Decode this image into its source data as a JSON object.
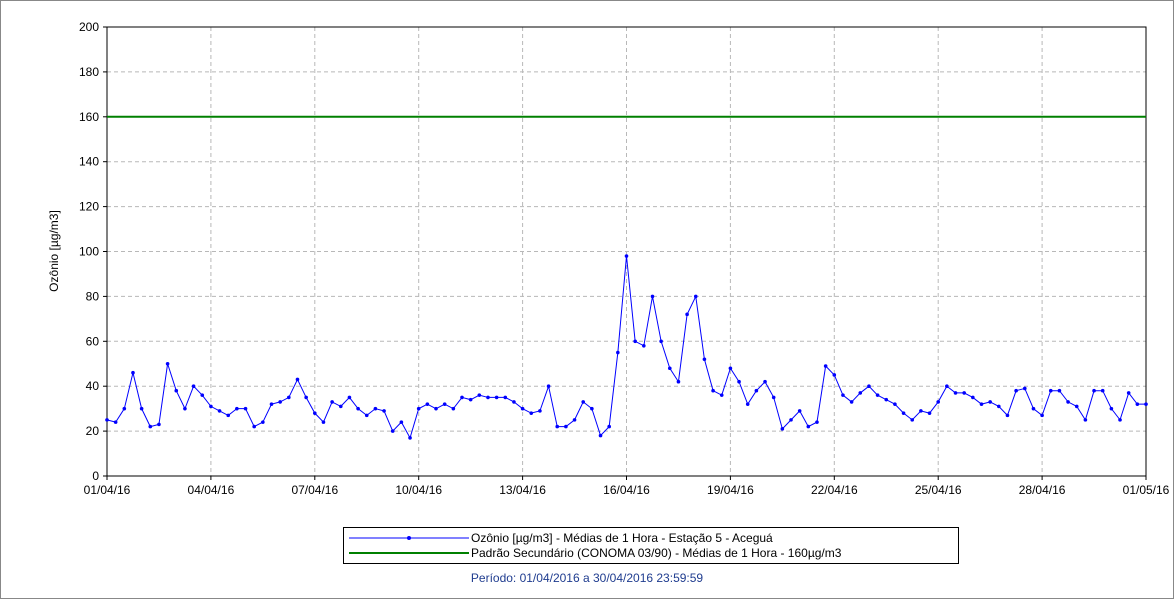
{
  "chart_data": {
    "type": "line",
    "y_label": "Ozônio [µg/m3]",
    "period": "Período: 01/04/2016 a 30/04/2016 23:59:59",
    "grid": true,
    "xlim": [
      0,
      30
    ],
    "ylim": [
      0,
      200
    ],
    "xticks": [
      {
        "value": 0,
        "label": "01/04/16"
      },
      {
        "value": 3,
        "label": "04/04/16"
      },
      {
        "value": 6,
        "label": "07/04/16"
      },
      {
        "value": 9,
        "label": "10/04/16"
      },
      {
        "value": 12,
        "label": "13/04/16"
      },
      {
        "value": 15,
        "label": "16/04/16"
      },
      {
        "value": 18,
        "label": "19/04/16"
      },
      {
        "value": 21,
        "label": "22/04/16"
      },
      {
        "value": 24,
        "label": "25/04/16"
      },
      {
        "value": 27,
        "label": "28/04/16"
      },
      {
        "value": 30,
        "label": "01/05/16"
      }
    ],
    "yticks": [
      0,
      20,
      40,
      60,
      80,
      100,
      120,
      140,
      160,
      180,
      200
    ],
    "series": [
      {
        "name": "Ozônio [µg/m3] - Médias de 1 Hora - Estação 5 - Aceguá",
        "color": "#0000ff",
        "markers": true,
        "x": [
          0,
          0.25,
          0.5,
          0.75,
          1,
          1.25,
          1.5,
          1.75,
          2,
          2.25,
          2.5,
          2.75,
          3,
          3.25,
          3.5,
          3.75,
          4,
          4.25,
          4.5,
          4.75,
          5,
          5.25,
          5.5,
          5.75,
          6,
          6.25,
          6.5,
          6.75,
          7,
          7.25,
          7.5,
          7.75,
          8,
          8.25,
          8.5,
          8.75,
          9,
          9.25,
          9.5,
          9.75,
          10,
          10.25,
          10.5,
          10.75,
          11,
          11.25,
          11.5,
          11.75,
          12,
          12.25,
          12.5,
          12.75,
          13,
          13.25,
          13.5,
          13.75,
          14,
          14.25,
          14.5,
          14.75,
          15,
          15.25,
          15.5,
          15.75,
          16,
          16.25,
          16.5,
          16.75,
          17,
          17.25,
          17.5,
          17.75,
          18,
          18.25,
          18.5,
          18.75,
          19,
          19.25,
          19.5,
          19.75,
          20,
          20.25,
          20.5,
          20.75,
          21,
          21.25,
          21.5,
          21.75,
          22,
          22.25,
          22.5,
          22.75,
          23,
          23.25,
          23.5,
          23.75,
          24,
          24.25,
          24.5,
          24.75,
          25,
          25.25,
          25.5,
          25.75,
          26,
          26.25,
          26.5,
          26.75,
          27,
          27.25,
          27.5,
          27.75,
          28,
          28.25,
          28.5,
          28.75,
          29,
          29.25,
          29.5,
          29.75,
          30
        ],
        "values": [
          25,
          24,
          30,
          46,
          30,
          22,
          23,
          50,
          38,
          30,
          40,
          36,
          31,
          29,
          27,
          30,
          30,
          22,
          24,
          32,
          33,
          35,
          43,
          35,
          28,
          24,
          33,
          31,
          35,
          30,
          27,
          30,
          29,
          20,
          24,
          17,
          30,
          32,
          30,
          32,
          30,
          35,
          34,
          36,
          35,
          35,
          35,
          33,
          30,
          28,
          29,
          40,
          22,
          22,
          25,
          33,
          30,
          18,
          22,
          55,
          98,
          60,
          58,
          80,
          60,
          48,
          42,
          72,
          80,
          52,
          38,
          36,
          48,
          42,
          32,
          38,
          42,
          35,
          21,
          25,
          29,
          22,
          24,
          49,
          45,
          36,
          33,
          37,
          40,
          36,
          34,
          32,
          28,
          25,
          29,
          28,
          33,
          40,
          37,
          37,
          35,
          32,
          33,
          31,
          27,
          38,
          39,
          30,
          27,
          38,
          38,
          33,
          31,
          25,
          38,
          38,
          30,
          25,
          37,
          32,
          32
        ]
      },
      {
        "name": "Padrão Secundário (CONOMA 03/90) - Médias de 1 Hora - 160µg/m3",
        "color": "#008000",
        "markers": false,
        "x": [
          0,
          30
        ],
        "values": [
          160,
          160
        ]
      }
    ]
  }
}
